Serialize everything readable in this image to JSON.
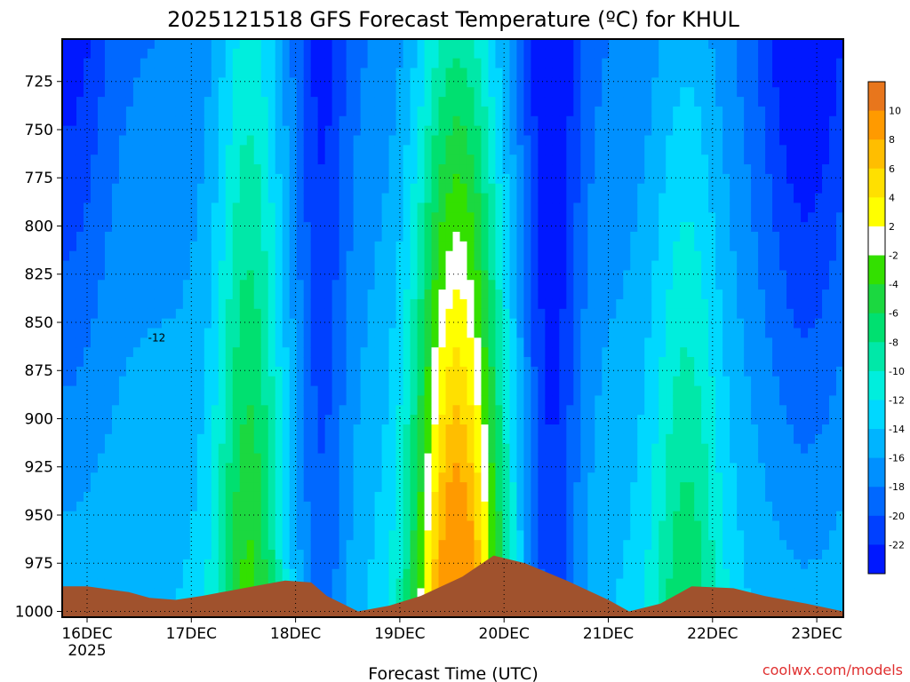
{
  "chart_data": {
    "type": "contour",
    "title": "2025121518 GFS Forecast Temperature (ºC) for KHUL",
    "xlabel": "Forecast Time (UTC)",
    "ylabel": "",
    "credit": "coolwx.com/models",
    "x_ticks": [
      "16DEC",
      "17DEC",
      "18DEC",
      "19DEC",
      "20DEC",
      "21DEC",
      "22DEC",
      "23DEC"
    ],
    "x_year_label": "2025",
    "y_ticks": [
      725,
      750,
      775,
      800,
      825,
      850,
      875,
      900,
      925,
      950,
      975,
      1000
    ],
    "ylim": [
      1000,
      700
    ],
    "y_axis": "pressure (hPa), inverted",
    "grid": true,
    "colorbar": {
      "labels": [
        "10",
        "8",
        "6",
        "4",
        "2",
        "-2",
        "-4",
        "-6",
        "-8",
        "-10",
        "-12",
        "-14",
        "-16",
        "-18",
        "-20",
        "-22"
      ],
      "colors": [
        "#e8761c",
        "#ff9a00",
        "#ffbe00",
        "#ffe000",
        "#ffff00",
        "#ffffff",
        "#33e000",
        "#1bd840",
        "#00e070",
        "#00e8a8",
        "#00eedd",
        "#00d8ff",
        "#00b4ff",
        "#0090ff",
        "#0068ff",
        "#0040ff",
        "#0018ff"
      ]
    },
    "level_colors": {
      "-22": "#0018ff",
      "-20": "#0040ff",
      "-18": "#0068ff",
      "-16": "#0090ff",
      "-14": "#00b4ff",
      "-12": "#00d8ff",
      "-10": "#00eedd",
      "-8": "#00e8a8",
      "-6": "#00e070",
      "-4": "#1bd840",
      "-2": "#33e000",
      "0": "#ffffff",
      "2": "#ffff00",
      "4": "#ffe000",
      "6": "#ffbe00",
      "8": "#ff9a00"
    },
    "terrain_color": "#a0522d",
    "contour_labels": [
      {
        "t": "16DEC 12Z",
        "p": 860,
        "v": "-12"
      }
    ]
  }
}
